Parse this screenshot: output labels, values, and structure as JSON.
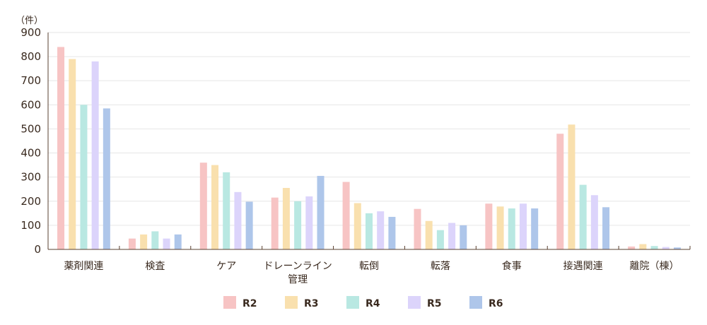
{
  "chart_data": {
    "type": "bar",
    "unit": "（件）",
    "categories": [
      [
        "薬剤関連"
      ],
      [
        "検査"
      ],
      [
        "ケア"
      ],
      [
        "ドレーンライン",
        "管理"
      ],
      [
        "転倒"
      ],
      [
        "転落"
      ],
      [
        "食事"
      ],
      [
        "接遇関連"
      ],
      [
        "離院（棟）"
      ]
    ],
    "series": [
      {
        "name": "R2",
        "color": "#f7c4c4",
        "values": [
          840,
          45,
          360,
          215,
          280,
          168,
          190,
          480,
          12
        ]
      },
      {
        "name": "R3",
        "color": "#f9e0ae",
        "values": [
          790,
          62,
          350,
          255,
          192,
          118,
          178,
          518,
          22
        ]
      },
      {
        "name": "R4",
        "color": "#b9e8e2",
        "values": [
          600,
          75,
          320,
          200,
          150,
          80,
          170,
          268,
          14
        ]
      },
      {
        "name": "R5",
        "color": "#dcd4fb",
        "values": [
          780,
          45,
          238,
          220,
          158,
          110,
          190,
          225,
          10
        ]
      },
      {
        "name": "R6",
        "color": "#aec6ea",
        "values": [
          585,
          62,
          198,
          305,
          135,
          100,
          170,
          175,
          8
        ]
      }
    ],
    "ylim": [
      0,
      900
    ],
    "yticks": [
      0,
      100,
      200,
      300,
      400,
      500,
      600,
      700,
      800,
      900
    ],
    "grid": true,
    "legend_position": "bottom"
  }
}
